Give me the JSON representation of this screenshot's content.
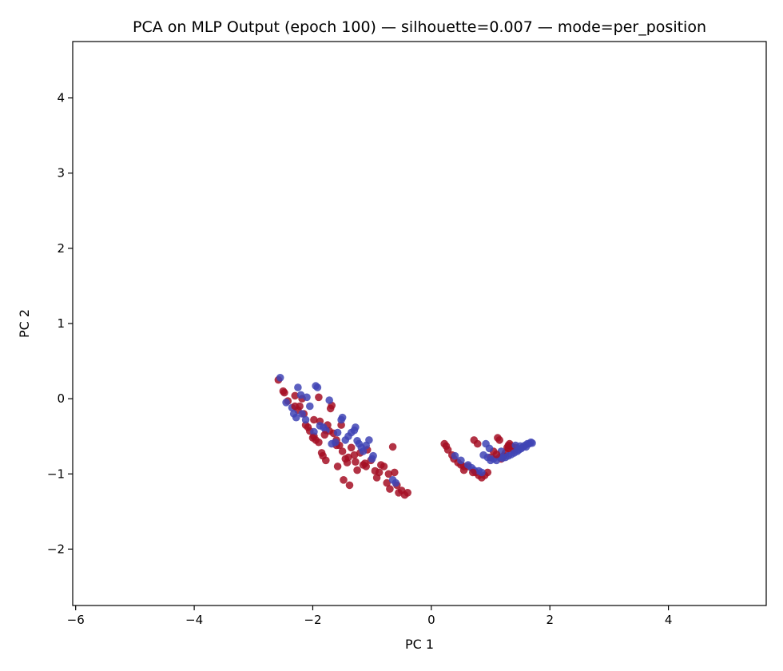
{
  "chart_data": {
    "type": "scatter",
    "title": "PCA on MLP Output (epoch 100) — silhouette=0.007 — mode=per_position",
    "xlabel": "PC 1",
    "ylabel": "PC 2",
    "xlim": [
      -6.05,
      5.65
    ],
    "ylim": [
      -2.75,
      4.75
    ],
    "xticks": [
      -6,
      -4,
      -2,
      0,
      2,
      4
    ],
    "yticks": [
      -2,
      -1,
      0,
      1,
      2,
      3,
      4
    ],
    "xtick_labels": [
      "−6",
      "−4",
      "−2",
      "0",
      "2",
      "4"
    ],
    "ytick_labels": [
      "−2",
      "−1",
      "0",
      "1",
      "2",
      "3",
      "4"
    ],
    "grid": false,
    "legend": false,
    "colors": {
      "red": "#a50f24",
      "blue": "#3f44b5",
      "edge": "#000000"
    },
    "series": [
      {
        "color": "red",
        "points": [
          [
            -2.58,
            0.25
          ],
          [
            -2.5,
            0.1
          ],
          [
            -2.48,
            0.08
          ],
          [
            -2.42,
            -0.03
          ],
          [
            -2.3,
            0.04
          ],
          [
            -2.25,
            -0.15
          ],
          [
            -2.18,
            0.0
          ],
          [
            -2.15,
            -0.2
          ],
          [
            -2.12,
            -0.35
          ],
          [
            -2.08,
            -0.38
          ],
          [
            -2.05,
            -0.43
          ],
          [
            -1.98,
            -0.5
          ],
          [
            -1.95,
            -0.55
          ],
          [
            -1.9,
            -0.58
          ],
          [
            -1.88,
            -0.3
          ],
          [
            -1.85,
            -0.72
          ],
          [
            -1.83,
            -0.76
          ],
          [
            -1.78,
            -0.82
          ],
          [
            -1.75,
            -0.35
          ],
          [
            -1.72,
            -0.43
          ],
          [
            -1.7,
            -0.13
          ],
          [
            -1.68,
            -0.09
          ],
          [
            -1.65,
            -0.46
          ],
          [
            -1.6,
            -0.55
          ],
          [
            -1.58,
            -0.9
          ],
          [
            -1.55,
            -0.62
          ],
          [
            -1.52,
            -0.35
          ],
          [
            -1.5,
            -0.7
          ],
          [
            -1.48,
            -1.08
          ],
          [
            -1.45,
            -0.8
          ],
          [
            -1.42,
            -0.85
          ],
          [
            -1.38,
            -1.15
          ],
          [
            -1.35,
            -0.65
          ],
          [
            -1.3,
            -0.75
          ],
          [
            -1.28,
            -0.84
          ],
          [
            -1.25,
            -0.95
          ],
          [
            -1.2,
            -0.72
          ],
          [
            -1.15,
            -0.88
          ],
          [
            -1.12,
            -0.86
          ],
          [
            -1.08,
            -0.68
          ],
          [
            -1.02,
            -0.82
          ],
          [
            -0.95,
            -0.96
          ],
          [
            -0.92,
            -1.05
          ],
          [
            -0.88,
            -0.98
          ],
          [
            -0.85,
            -0.88
          ],
          [
            -0.8,
            -0.9
          ],
          [
            -0.75,
            -1.12
          ],
          [
            -0.72,
            -1.0
          ],
          [
            -0.7,
            -1.2
          ],
          [
            -0.65,
            -0.64
          ],
          [
            -0.62,
            -0.98
          ],
          [
            -0.58,
            -1.15
          ],
          [
            -0.55,
            -1.25
          ],
          [
            -0.5,
            -1.22
          ],
          [
            -0.45,
            -1.28
          ],
          [
            -0.4,
            -1.25
          ],
          [
            -1.9,
            0.02
          ],
          [
            -1.98,
            -0.28
          ],
          [
            -2.22,
            -0.1
          ],
          [
            -1.6,
            -0.62
          ],
          [
            0.22,
            -0.6
          ],
          [
            0.25,
            -0.63
          ],
          [
            0.28,
            -0.68
          ],
          [
            0.35,
            -0.75
          ],
          [
            0.38,
            -0.8
          ],
          [
            0.45,
            -0.85
          ],
          [
            0.5,
            -0.88
          ],
          [
            0.55,
            -0.9
          ],
          [
            0.72,
            -0.55
          ],
          [
            0.78,
            -0.6
          ],
          [
            0.75,
            -0.98
          ],
          [
            0.8,
            -1.02
          ],
          [
            0.85,
            -1.05
          ],
          [
            0.9,
            -1.02
          ],
          [
            0.95,
            -0.98
          ],
          [
            1.0,
            -0.78
          ],
          [
            1.05,
            -0.7
          ],
          [
            1.12,
            -0.52
          ],
          [
            1.15,
            -0.55
          ],
          [
            1.18,
            -0.8
          ],
          [
            1.22,
            -0.76
          ],
          [
            1.25,
            -0.72
          ],
          [
            1.28,
            -0.65
          ],
          [
            1.3,
            -0.62
          ],
          [
            1.32,
            -0.6
          ],
          [
            1.35,
            -0.63
          ],
          [
            1.38,
            -0.68
          ],
          [
            1.42,
            -0.65
          ],
          [
            0.55,
            -0.95
          ],
          [
            0.62,
            -0.9
          ]
        ]
      },
      {
        "color": "blue",
        "points": [
          [
            -2.55,
            0.28
          ],
          [
            -2.45,
            -0.05
          ],
          [
            -2.35,
            -0.12
          ],
          [
            -2.32,
            -0.2
          ],
          [
            -2.28,
            -0.25
          ],
          [
            -2.25,
            0.15
          ],
          [
            -2.2,
            0.05
          ],
          [
            -2.12,
            -0.28
          ],
          [
            -2.1,
            0.02
          ],
          [
            -2.05,
            -0.1
          ],
          [
            -1.95,
            0.17
          ],
          [
            -1.92,
            0.15
          ],
          [
            -1.88,
            -0.36
          ],
          [
            -1.82,
            -0.38
          ],
          [
            -1.78,
            -0.42
          ],
          [
            -1.72,
            -0.02
          ],
          [
            -1.68,
            -0.6
          ],
          [
            -1.62,
            -0.58
          ],
          [
            -1.58,
            -0.45
          ],
          [
            -1.52,
            -0.28
          ],
          [
            -1.5,
            -0.25
          ],
          [
            -1.45,
            -0.55
          ],
          [
            -1.4,
            -0.5
          ],
          [
            -1.35,
            -0.45
          ],
          [
            -1.3,
            -0.42
          ],
          [
            -1.28,
            -0.38
          ],
          [
            -1.25,
            -0.56
          ],
          [
            -1.22,
            -0.6
          ],
          [
            -1.18,
            -0.65
          ],
          [
            -1.15,
            -0.7
          ],
          [
            -1.1,
            -0.62
          ],
          [
            -1.05,
            -0.55
          ],
          [
            -1.0,
            -0.8
          ],
          [
            -0.98,
            -0.76
          ],
          [
            -0.65,
            -1.08
          ],
          [
            -0.6,
            -1.12
          ],
          [
            -2.18,
            -0.2
          ],
          [
            -1.98,
            -0.44
          ],
          [
            0.4,
            -0.76
          ],
          [
            0.5,
            -0.82
          ],
          [
            0.62,
            -0.88
          ],
          [
            0.68,
            -0.92
          ],
          [
            0.8,
            -0.96
          ],
          [
            0.85,
            -0.98
          ],
          [
            0.88,
            -0.75
          ],
          [
            0.95,
            -0.78
          ],
          [
            1.0,
            -0.82
          ],
          [
            1.05,
            -0.8
          ],
          [
            1.1,
            -0.82
          ],
          [
            1.15,
            -0.78
          ],
          [
            1.2,
            -0.79
          ],
          [
            1.25,
            -0.78
          ],
          [
            1.3,
            -0.76
          ],
          [
            1.35,
            -0.74
          ],
          [
            1.4,
            -0.72
          ],
          [
            1.45,
            -0.7
          ],
          [
            1.48,
            -0.68
          ],
          [
            1.52,
            -0.66
          ],
          [
            1.55,
            -0.64
          ],
          [
            1.58,
            -0.62
          ],
          [
            1.6,
            -0.64
          ],
          [
            1.62,
            -0.6
          ],
          [
            1.65,
            -0.6
          ],
          [
            1.68,
            -0.58
          ],
          [
            1.7,
            -0.59
          ],
          [
            0.92,
            -0.6
          ],
          [
            0.98,
            -0.66
          ],
          [
            1.42,
            -0.62
          ],
          [
            1.5,
            -0.63
          ],
          [
            0.72,
            -0.95
          ],
          [
            1.18,
            -0.7
          ]
        ]
      },
      {
        "color": "red",
        "points": [
          [
            -2.3,
            -0.1
          ],
          [
            -2.0,
            -0.52
          ],
          [
            -1.8,
            -0.48
          ],
          [
            -1.4,
            -0.78
          ],
          [
            -1.1,
            -0.9
          ],
          [
            1.3,
            -0.66
          ],
          [
            1.1,
            -0.74
          ],
          [
            0.7,
            -0.98
          ]
        ]
      }
    ]
  }
}
